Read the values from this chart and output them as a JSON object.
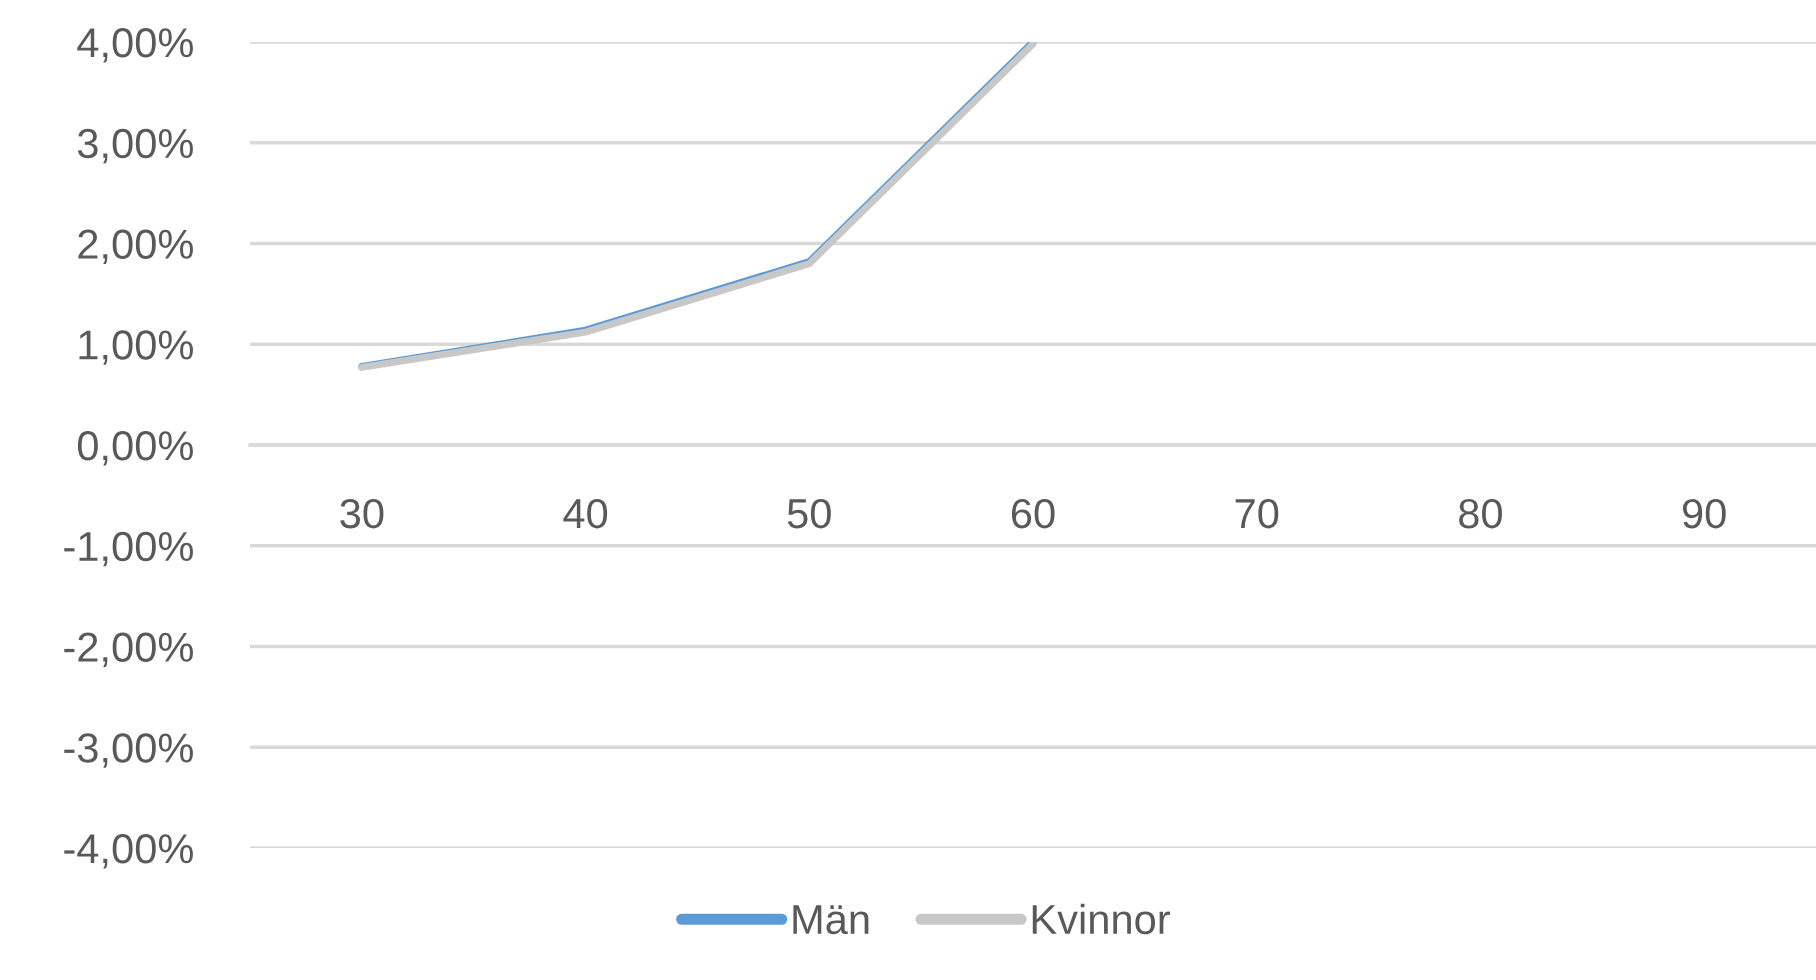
{
  "chart_data": {
    "type": "line",
    "categories": [
      "30",
      "40",
      "50",
      "60",
      "70",
      "80",
      "90"
    ],
    "series": [
      {
        "name": "Män",
        "color": "#5b9bd5",
        "values": [
          0.78,
          1.14,
          1.82,
          4.0,
          null,
          null,
          null
        ]
      },
      {
        "name": "Kvinnor",
        "color": "#c8c8c8",
        "values": [
          0.77,
          1.12,
          1.8,
          3.98,
          null,
          null,
          null
        ]
      }
    ],
    "ylim": [
      -4,
      4
    ],
    "yticks": [
      {
        "value": -4,
        "label": "-4,00%"
      },
      {
        "value": -3,
        "label": "-3,00%"
      },
      {
        "value": -2,
        "label": "-2,00%"
      },
      {
        "value": -1,
        "label": "-1,00%"
      },
      {
        "value": 0,
        "label": "0,00%"
      },
      {
        "value": 1,
        "label": "1,00%"
      },
      {
        "value": 2,
        "label": "2,00%"
      },
      {
        "value": 3,
        "label": "3,00%"
      },
      {
        "value": 4,
        "label": "4,00%"
      }
    ],
    "grid": "y",
    "legend": "bottom",
    "line_style": "solid",
    "marker": "none"
  }
}
